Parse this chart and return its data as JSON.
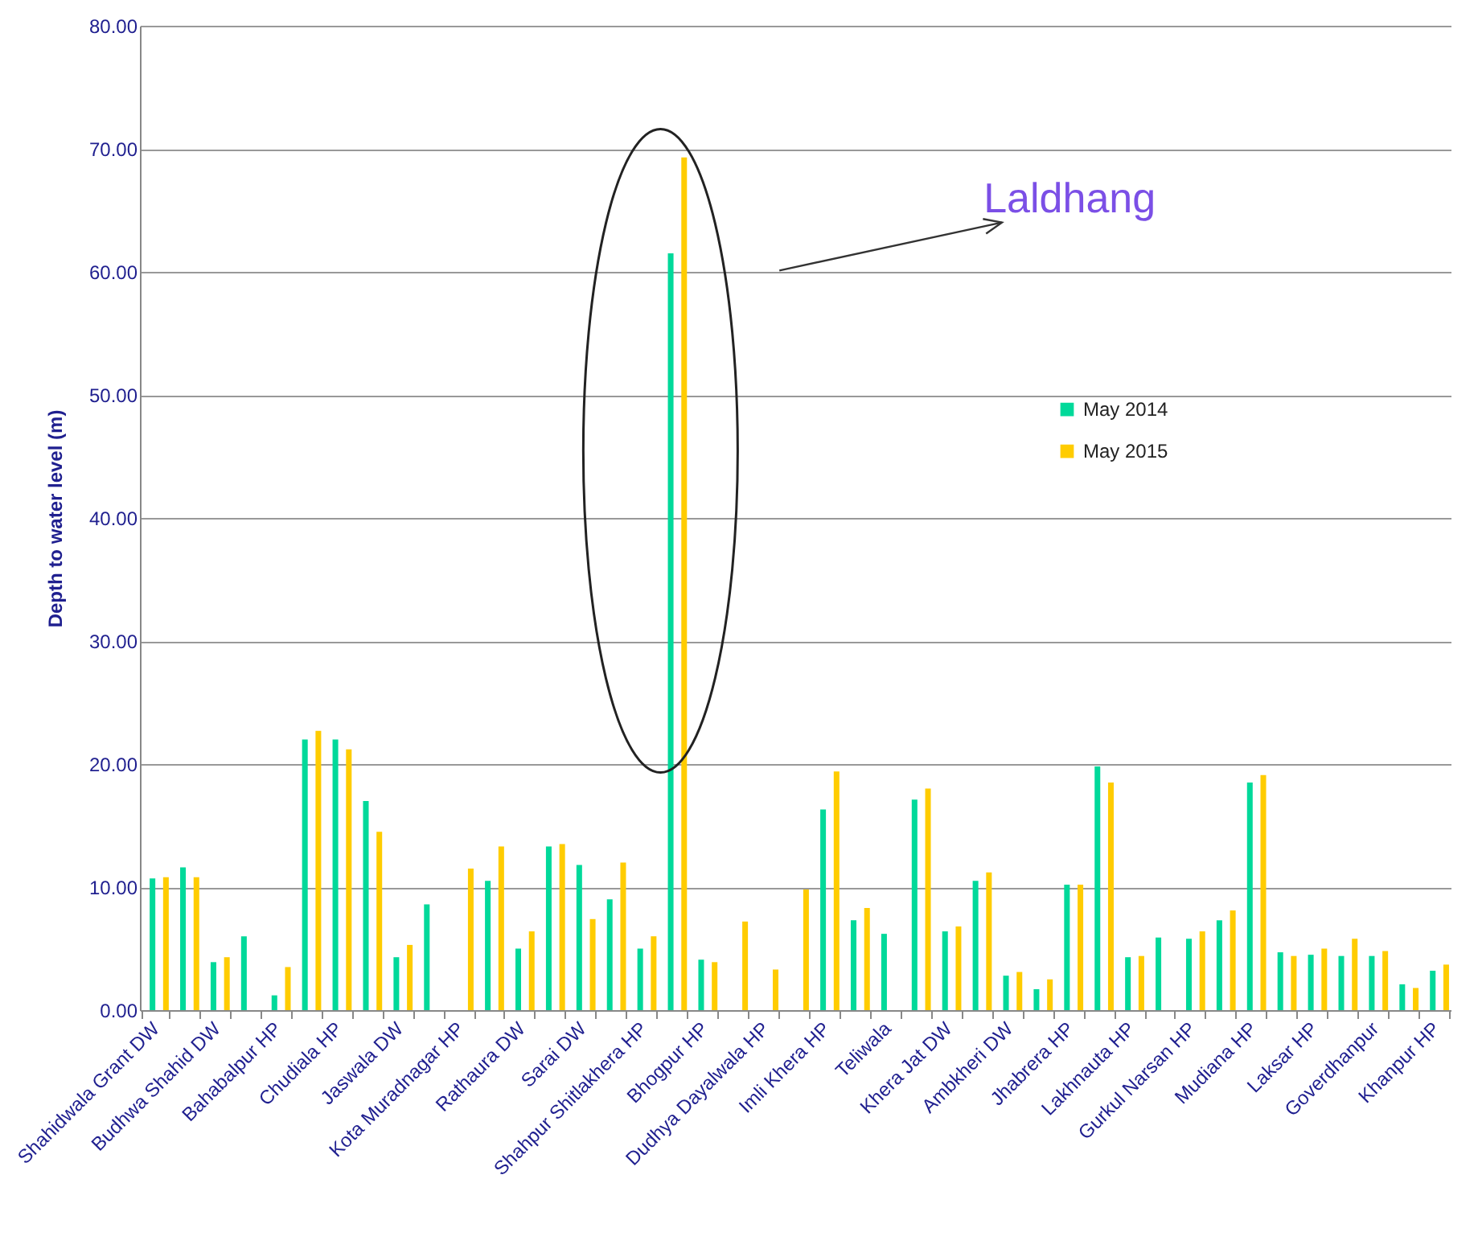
{
  "chart_data": {
    "type": "bar",
    "ylabel": "Depth to water level (m)",
    "categories": [
      "Shahidwala Grant DW",
      null,
      "Budhwa Shahid DW",
      null,
      "Bahabalpur HP",
      null,
      "Chudiala HP",
      null,
      "Jaswala DW",
      null,
      "Kota Muradnagar HP",
      null,
      "Rathaura DW",
      null,
      "Sarai DW",
      null,
      "Shahpur Shitlakhera HP",
      null,
      "Bhogpur HP",
      null,
      "Dudhya Dayalwala HP",
      null,
      "Imli Khera HP",
      null,
      "Teliwala",
      null,
      "Khera Jat DW",
      null,
      "Ambkheri DW",
      null,
      "Jhabrera HP",
      null,
      "Lakhnauta HP",
      null,
      "Gurkul Narsan HP",
      null,
      "Mudiana HP",
      null,
      "Laksar HP",
      null,
      "Goverdhanpur",
      null,
      "Khanpur HP"
    ],
    "series": [
      {
        "name": "May 2014",
        "color": "#00d99a",
        "values": [
          10.7,
          11.6,
          3.9,
          6.0,
          1.2,
          22.0,
          22.0,
          17.0,
          4.3,
          8.6,
          null,
          10.5,
          5.0,
          13.3,
          11.8,
          9.0,
          5.0,
          61.5,
          4.1,
          null,
          null,
          null,
          16.3,
          7.3,
          6.2,
          17.1,
          6.4,
          10.5,
          2.8,
          1.7,
          10.2,
          19.8,
          4.3,
          5.9,
          5.8,
          7.3,
          18.5,
          4.7,
          4.5,
          4.4,
          4.4,
          2.1,
          3.2
        ]
      },
      {
        "name": "May 2015",
        "color": "#ffcc00",
        "values": [
          10.8,
          10.8,
          4.3,
          null,
          3.5,
          22.7,
          21.2,
          14.5,
          5.3,
          null,
          11.5,
          13.3,
          6.4,
          13.5,
          7.4,
          12.0,
          6.0,
          69.3,
          3.9,
          7.2,
          3.3,
          9.8,
          19.4,
          8.3,
          null,
          18.0,
          6.8,
          11.2,
          3.1,
          2.5,
          10.2,
          18.5,
          4.4,
          null,
          6.4,
          8.1,
          19.1,
          4.4,
          5.0,
          5.8,
          4.8,
          1.8,
          3.7
        ]
      }
    ],
    "ylim": [
      0,
      80
    ],
    "yticks": [
      {
        "value": 0,
        "label": "0.00"
      },
      {
        "value": 10,
        "label": "10.00"
      },
      {
        "value": 20,
        "label": "20.00"
      },
      {
        "value": 30,
        "label": "30.00"
      },
      {
        "value": 40,
        "label": "40.00"
      },
      {
        "value": 50,
        "label": "50.00"
      },
      {
        "value": 60,
        "label": "60.00"
      },
      {
        "value": 70,
        "label": "70.00"
      },
      {
        "value": 80,
        "label": "80.00"
      }
    ],
    "grid": "y",
    "legend": "right",
    "annotations": [
      "Laldhang"
    ]
  }
}
